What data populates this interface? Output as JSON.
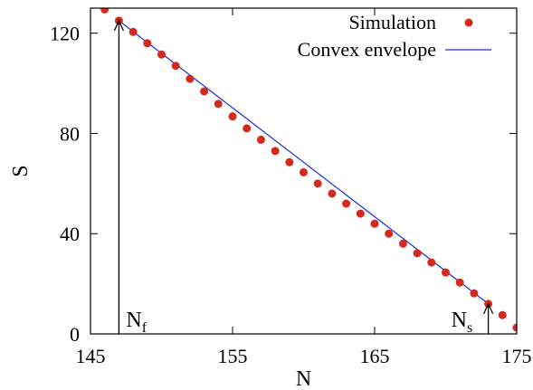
{
  "chart_data": {
    "type": "scatter",
    "title": "",
    "xlabel": "N",
    "ylabel": "S",
    "xlim": [
      145,
      175
    ],
    "ylim": [
      0,
      130
    ],
    "xticks": [
      145,
      155,
      165,
      175
    ],
    "yticks": [
      0,
      40,
      80,
      120
    ],
    "grid": false,
    "legend_position": "top-right",
    "series": [
      {
        "name": "Simulation",
        "kind": "points",
        "color": "#d42a1e",
        "x": [
          146,
          147,
          148,
          149,
          150,
          151,
          152,
          153,
          154,
          155,
          156,
          157,
          158,
          159,
          160,
          161,
          162,
          163,
          164,
          165,
          166,
          167,
          168,
          169,
          170,
          171,
          172,
          173,
          174,
          175
        ],
        "y": [
          129.5,
          125,
          120.5,
          116,
          111.5,
          107,
          101.8,
          96.8,
          91.8,
          86.8,
          82,
          77.5,
          73,
          68.5,
          64.5,
          60,
          56,
          52,
          48,
          44,
          40,
          36,
          32.2,
          28.5,
          24.5,
          20.5,
          16.2,
          12,
          7.5,
          2.5
        ]
      },
      {
        "name": "Convex envelope",
        "kind": "line",
        "color": "#1f2fd6",
        "x": [
          147,
          173
        ],
        "y": [
          125,
          12
        ]
      }
    ],
    "annotations": [
      {
        "text": "N",
        "sub": "f",
        "x": 147,
        "arrow_from_y": 0,
        "arrow_to_y": 125
      },
      {
        "text": "N",
        "sub": "s",
        "x": 173,
        "arrow_from_y": 0,
        "arrow_to_y": 12
      }
    ]
  }
}
